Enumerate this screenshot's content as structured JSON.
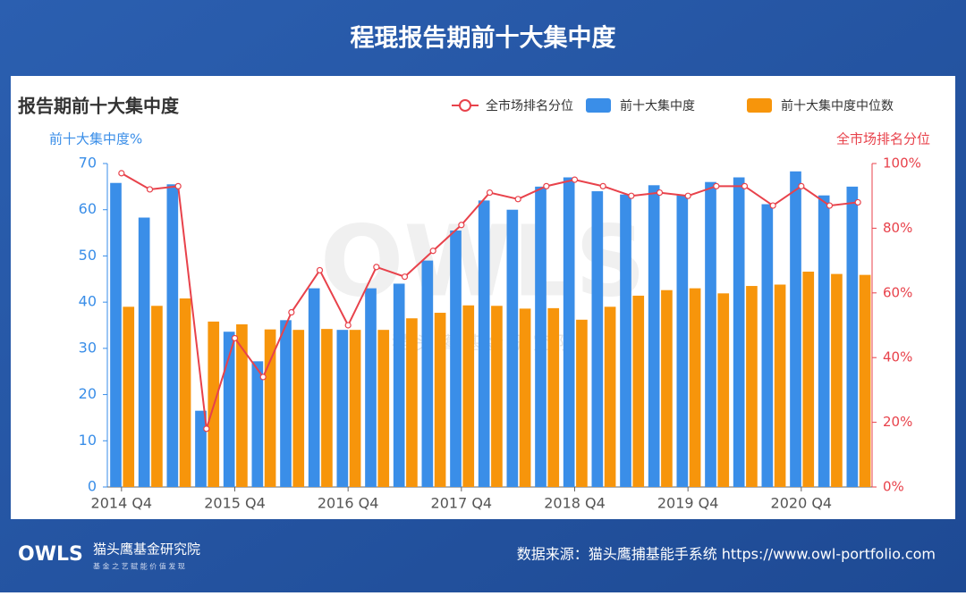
{
  "header": {
    "title": "程琨报告期前十大集中度"
  },
  "footer": {
    "brand": "猫头鹰基金研究院",
    "slogan": "基 金 之 艺 赋 能 价 值 发 现",
    "source": "数据来源：猫头鹰捕基能手系统  https://www.owl-portfolio.com",
    "logo": "OWLS"
  },
  "watermark": {
    "logo": "OWLS",
    "text": "猫 头 鹰 基 金 研 究 院"
  },
  "chart_data": {
    "type": "bar_line",
    "title": "报告期前十大集中度",
    "ylabel": "前十大集中度%",
    "y2label": "全市场排名分位",
    "categories": [
      "2014 Q4",
      null,
      null,
      null,
      "2015 Q4",
      null,
      null,
      null,
      "2016 Q4",
      null,
      null,
      null,
      "2017 Q4",
      null,
      null,
      null,
      "2018 Q4",
      null,
      null,
      null,
      "2019 Q4",
      null,
      null,
      null,
      "2020 Q4",
      null,
      null
    ],
    "series": [
      {
        "name": "全市场排名分位",
        "type": "line",
        "axis": "y2",
        "color": "#e8424b",
        "values": [
          97,
          92,
          93,
          18,
          46,
          34,
          54,
          67,
          50,
          68,
          65,
          73,
          81,
          91,
          89,
          93,
          95,
          93,
          90,
          91,
          90,
          93,
          93,
          87,
          93,
          87,
          88
        ]
      },
      {
        "name": "前十大集中度",
        "type": "bar",
        "color": "#3a8ee8",
        "values": [
          65.8,
          58.3,
          65.5,
          16.5,
          33.6,
          27.2,
          36.1,
          43,
          34,
          43,
          44,
          49,
          55.5,
          62,
          60,
          65,
          67,
          64,
          63.3,
          65.3,
          63.2,
          66,
          67,
          61.2,
          68.3,
          63.1,
          65
        ]
      },
      {
        "name": "前十大集中度中位数",
        "type": "bar",
        "color": "#f7950b",
        "values": [
          39,
          39.2,
          40.8,
          35.8,
          35.2,
          34.1,
          34,
          34.2,
          34,
          34,
          36.5,
          37.7,
          39.3,
          39.2,
          38.6,
          38.7,
          36.2,
          39,
          41.4,
          42.6,
          43,
          41.9,
          43.5,
          43.8,
          46.6,
          46.1,
          45.9
        ]
      }
    ],
    "ylim": [
      0,
      70
    ],
    "yticks": [
      0,
      10,
      20,
      30,
      40,
      50,
      60,
      70
    ],
    "y2lim": [
      0,
      100
    ],
    "y2ticks": [
      {
        "value": 0,
        "label": "0%"
      },
      {
        "value": 20,
        "label": "20%"
      },
      {
        "value": 40,
        "label": "40%"
      },
      {
        "value": 60,
        "label": "60%"
      },
      {
        "value": 80,
        "label": "80%"
      },
      {
        "value": 100,
        "label": "100%"
      }
    ],
    "legend": "top-right"
  }
}
